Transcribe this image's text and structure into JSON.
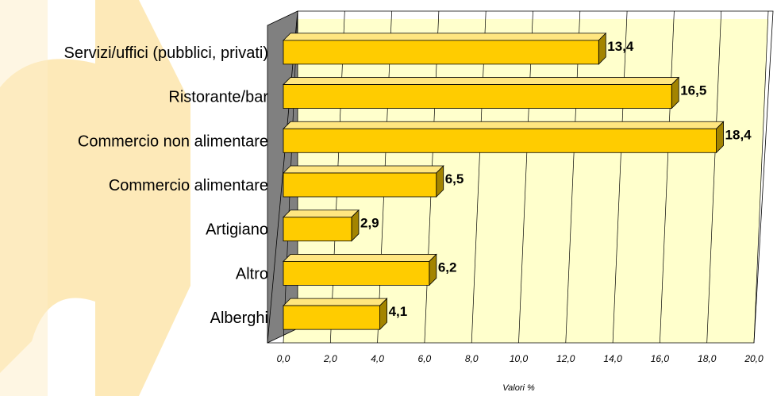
{
  "chart_data": {
    "type": "bar",
    "orientation": "horizontal",
    "style": "3d",
    "categories": [
      "Servizi/uffici (pubblici, privati)",
      "Ristorante/bar",
      "Commercio non alimentare",
      "Commercio alimentare",
      "Artigiano",
      "Altro",
      "Alberghi"
    ],
    "values": [
      13.4,
      16.5,
      18.4,
      6.5,
      2.9,
      6.2,
      4.1
    ],
    "value_labels": [
      "13,4",
      "16,5",
      "18,4",
      "6,5",
      "2,9",
      "6,2",
      "4,1"
    ],
    "xlim": [
      0,
      20
    ],
    "x_ticks": [
      0,
      2,
      4,
      6,
      8,
      10,
      12,
      14,
      16,
      18,
      20
    ],
    "x_tick_labels": [
      "0,0",
      "2,0",
      "4,0",
      "6,0",
      "8,0",
      "10,0",
      "12,0",
      "14,0",
      "16,0",
      "18,0",
      "20,0"
    ],
    "xlabel": "Valori %",
    "ylabel": "",
    "title": "",
    "grid": true,
    "legend": "none",
    "colors": {
      "bar_front": "#ffcc00",
      "bar_top": "#ffe680",
      "bar_side": "#a38400",
      "plot_wall": "#ffffcc",
      "side_wall": "#808080",
      "grid": "#000000",
      "watermark": "#fde9b8"
    }
  }
}
